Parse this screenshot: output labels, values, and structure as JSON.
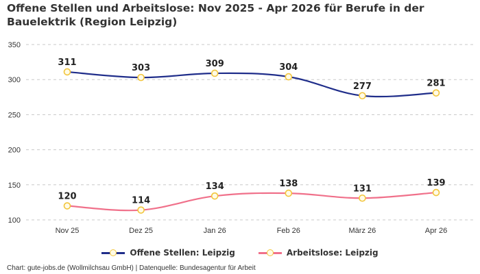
{
  "header": {
    "title": "Offene Stellen und Arbeitslose: Nov 2025 - Apr 2026 für Berufe in der Bauelektrik (Region Leipzig)"
  },
  "footer": {
    "credit": "Chart: gute-jobs.de (Wollmilchsau GmbH) | Datenquelle: Bundesagentur für Arbeit"
  },
  "chart_data": {
    "type": "line",
    "categories": [
      "Nov 25",
      "Dez 25",
      "Jan 26",
      "Feb 26",
      "März 26",
      "Apr 26"
    ],
    "yticks": [
      100,
      150,
      200,
      250,
      300,
      350
    ],
    "ylim": [
      100,
      350
    ],
    "grid": true,
    "legend_position": "bottom",
    "series": [
      {
        "name": "Offene Stellen: Leipzig",
        "values": [
          311,
          303,
          309,
          304,
          277,
          281
        ],
        "color": "#1f2d8a"
      },
      {
        "name": "Arbeitslose: Leipzig",
        "values": [
          120,
          114,
          134,
          138,
          131,
          139
        ],
        "color": "#f0708a"
      }
    ],
    "marker": {
      "fill": "#fffbe6",
      "stroke": "#f2c53d"
    },
    "gridline_color": "#c8c8c8"
  }
}
